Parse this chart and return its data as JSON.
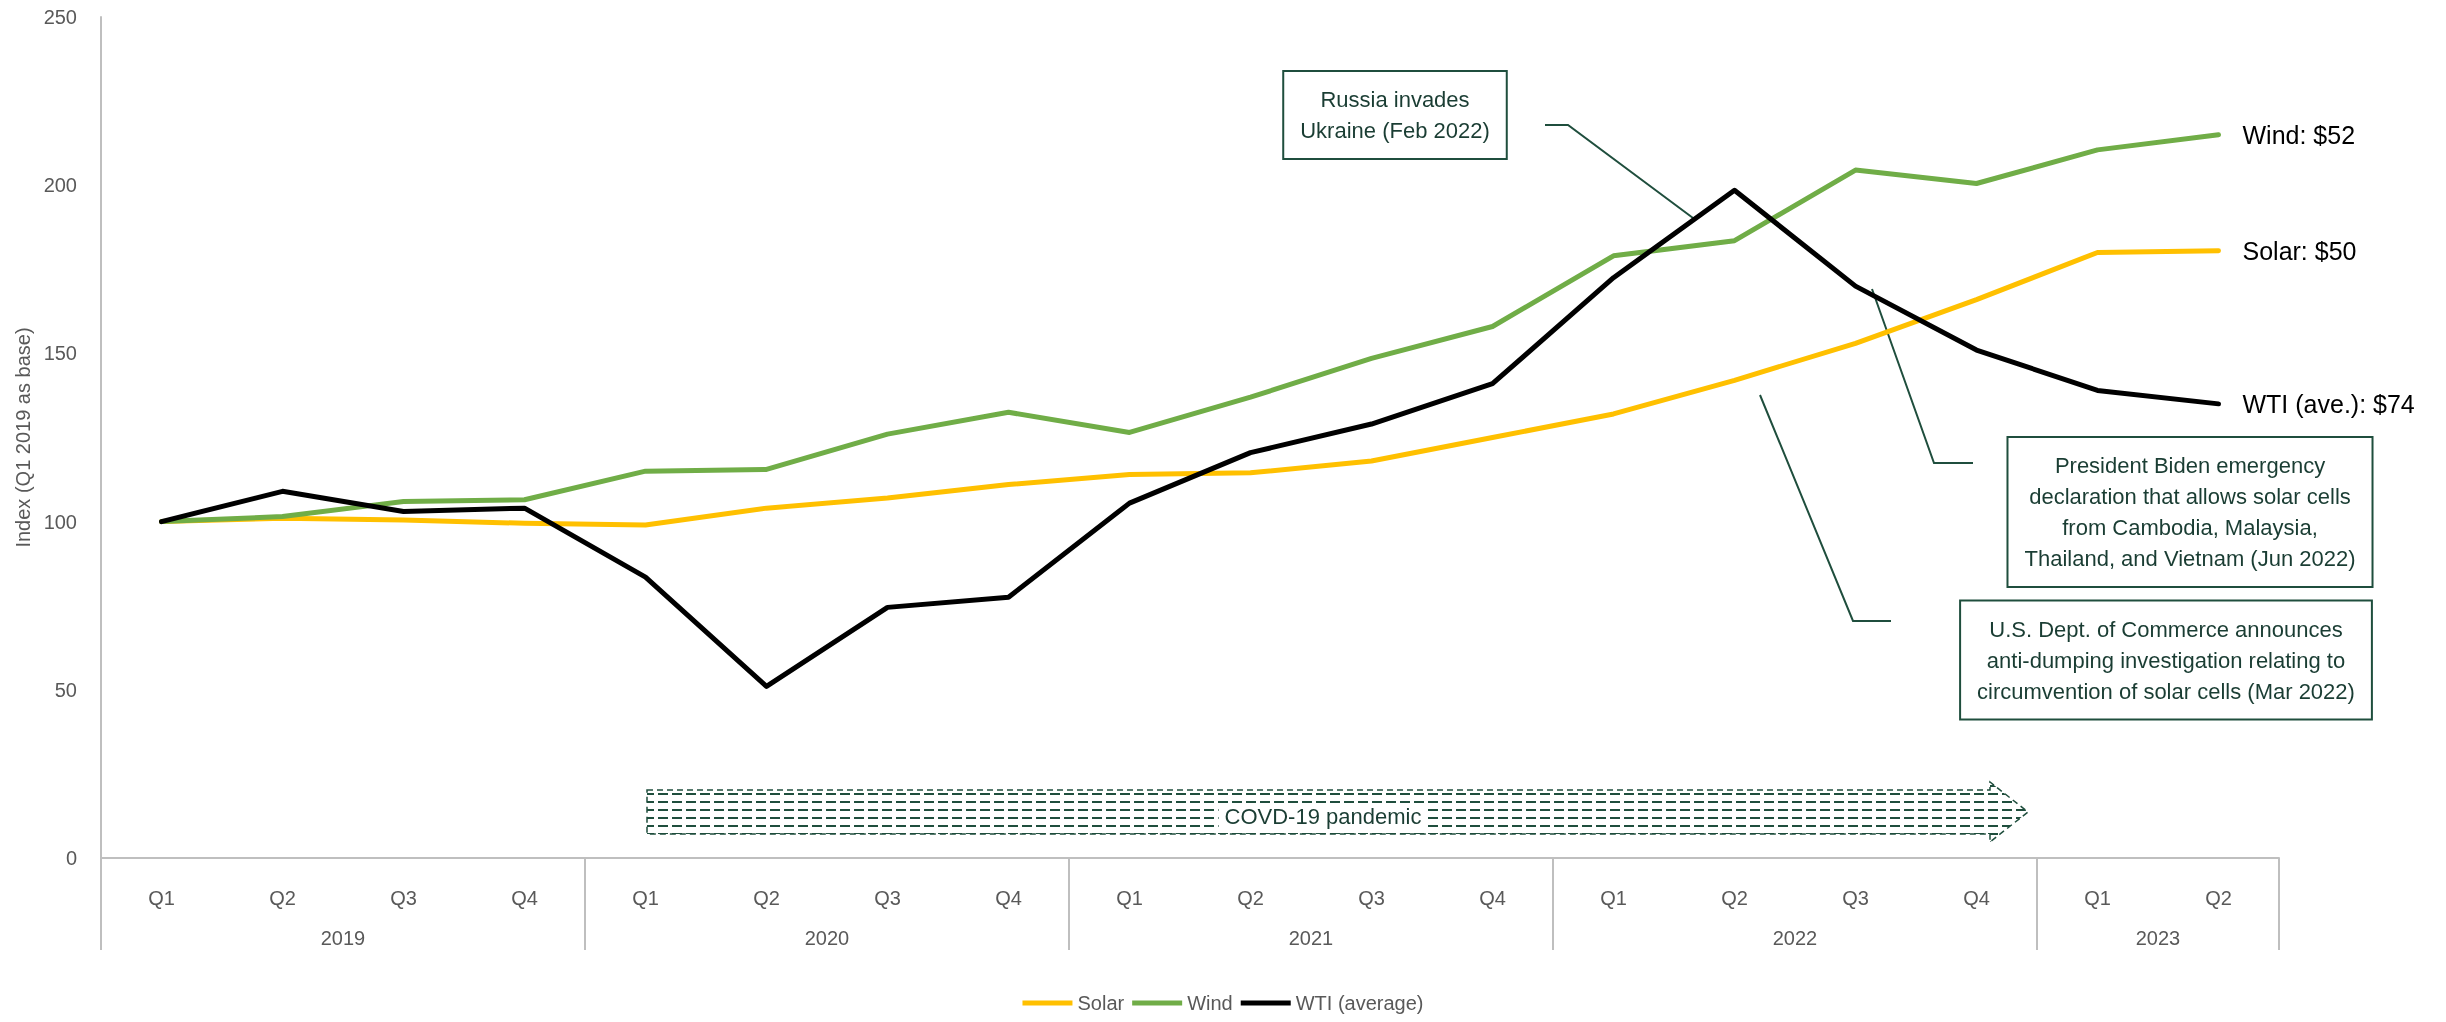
{
  "chart_data": {
    "type": "line",
    "ylabel": "Index (Q1 2019 as base)",
    "categories": [
      "Q1",
      "Q2",
      "Q3",
      "Q4",
      "Q1",
      "Q2",
      "Q3",
      "Q4",
      "Q1",
      "Q2",
      "Q3",
      "Q4",
      "Q1",
      "Q2",
      "Q3",
      "Q4",
      "Q1",
      "Q2"
    ],
    "series": [
      {
        "name": "Solar",
        "color": "#ffc000",
        "values": [
          100,
          101,
          100.5,
          99.5,
          99,
          104,
          107,
          111,
          114,
          114.5,
          118,
          125,
          132,
          142,
          153,
          166,
          180,
          180.5
        ]
      },
      {
        "name": "Wind",
        "color": "#70ad47",
        "values": [
          100,
          101.5,
          106,
          106.5,
          115,
          115.5,
          126,
          132.5,
          126.5,
          137,
          148.5,
          158,
          179,
          183.5,
          204.5,
          200.5,
          210.5,
          215
        ]
      },
      {
        "name": "WTI (average)",
        "color": "#000000",
        "values": [
          100,
          109,
          103,
          104,
          83.5,
          51,
          74.5,
          77.5,
          105.5,
          120.5,
          129,
          141,
          172.5,
          198.5,
          170,
          151,
          139,
          135
        ]
      }
    ],
    "ylim": [
      0,
      250
    ],
    "yticks": [
      0,
      50,
      100,
      150,
      200,
      250
    ],
    "grid": false,
    "legend": "bottom",
    "line_style": "solid",
    "marker": "none",
    "annotations": [
      "2019",
      "2020",
      "2021",
      "2022",
      "2023",
      "COVD-19 pandemic",
      "Russia invades\nUkraine (Feb 2022)",
      "President Biden emergency\ndeclaration that allows solar cells\nfrom Cambodia, Malaysia,\nThailand, and Vietnam (Jun 2022)",
      "U.S. Dept. of Commerce announces\nanti-dumping investigation relating to\ncircumvention of solar cells (Mar 2022)",
      "Wind: $52",
      "Solar: $50",
      "WTI (ave.): $74"
    ]
  }
}
